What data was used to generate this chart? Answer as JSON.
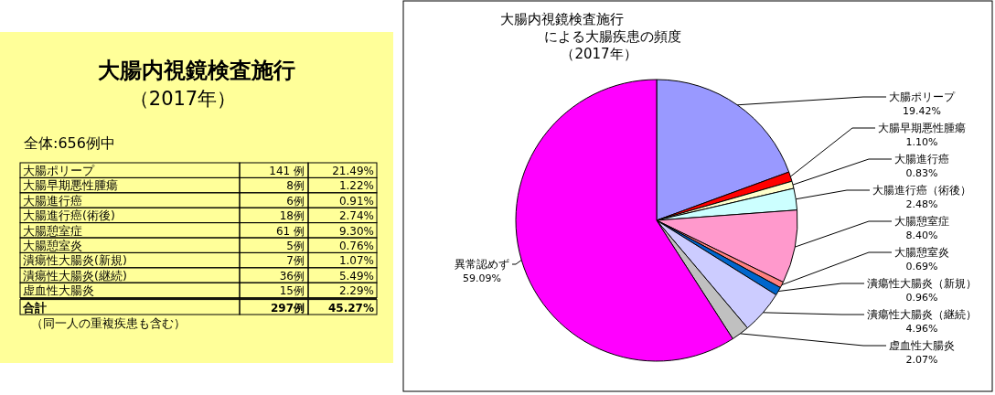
{
  "chart_data": [
    {
      "type": "other",
      "title": "大腸内視鏡検査施行",
      "subtitle": "（2017年）",
      "annotations": [
        "全体:656例中",
        "（同一人の重複疾患も含む）"
      ],
      "categories": [
        "大腸ポリープ",
        "大腸早期悪性腫瘍",
        "大腸進行癌",
        "大腸進行癌(術後)",
        "大腸憩室症",
        "大腸憩室炎",
        "潰瘍性大腸炎(新規)",
        "潰瘍性大腸炎(継続)",
        "虚血性大腸炎",
        "合計"
      ],
      "cell_labels": [
        [
          "141 例",
          "21.49%"
        ],
        [
          "8例",
          "1.22%"
        ],
        [
          "6例",
          "0.91%"
        ],
        [
          "18例",
          "2.74%"
        ],
        [
          "61 例",
          "9.30%"
        ],
        [
          "5例",
          "0.76%"
        ],
        [
          "7例",
          "1.07%"
        ],
        [
          "36例",
          "5.49%"
        ],
        [
          "15例",
          "2.29%"
        ],
        [
          "297例",
          "45.27%"
        ]
      ]
    },
    {
      "type": "pie",
      "title": "大腸内視鏡検査施行による大腸疾患の頻度",
      "subtitle": "（2017年）",
      "categories": [
        "大腸ポリープ",
        "大腸早期悪性腫瘍",
        "大腸進行癌",
        "大腸進行癌（術後）",
        "大腸憩室症",
        "大腸憩室炎",
        "潰瘍性大腸炎（新規）",
        "潰瘍性大腸炎（継続）",
        "虚血性大腸炎",
        "異常認めず"
      ],
      "values": [
        19.42,
        1.1,
        0.83,
        2.48,
        8.4,
        0.69,
        0.96,
        4.96,
        2.07,
        59.09
      ],
      "colors": [
        "#9999ff",
        "#ff0000",
        "#ffffcc",
        "#ccffff",
        "#ff99cc",
        "#ff8080",
        "#0066cc",
        "#ccccff",
        "#c0c0c0",
        "#ff00ff"
      ],
      "value_labels": [
        "19.42%",
        "1.10%",
        "0.83%",
        "2.48%",
        "8.40%",
        "0.69%",
        "0.96%",
        "4.96%",
        "2.07%",
        "59.09%"
      ]
    }
  ]
}
